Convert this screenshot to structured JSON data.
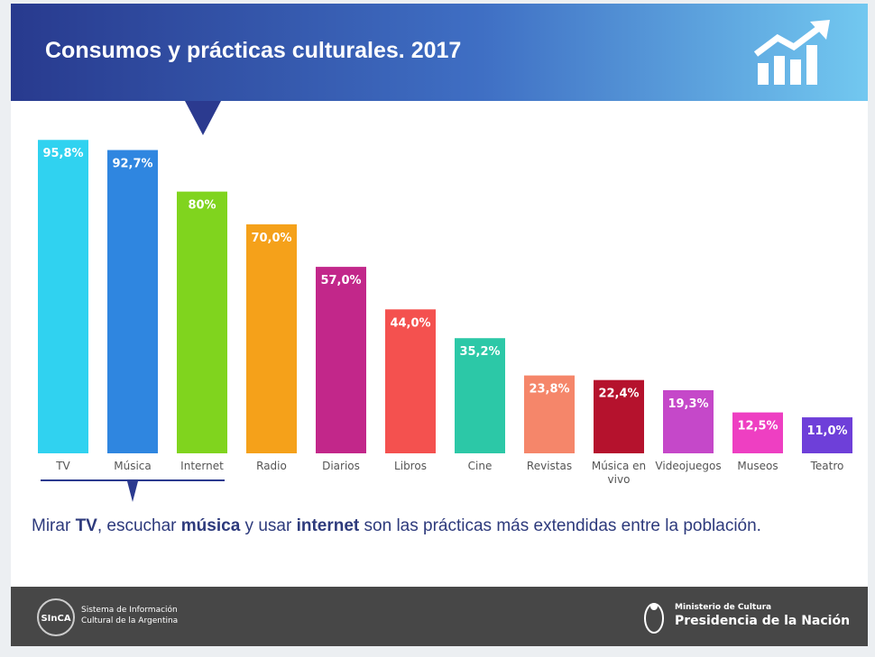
{
  "chart_data": {
    "type": "bar",
    "title": "Consumos y prácticas culturales. 2017",
    "categories": [
      "TV",
      "Música",
      "Internet",
      "Radio",
      "Diarios",
      "Libros",
      "Cine",
      "Revistas",
      "Música en vivo",
      "Videojuegos",
      "Museos",
      "Teatro"
    ],
    "values": [
      95.8,
      92.7,
      80,
      70.0,
      57.0,
      44.0,
      35.2,
      23.8,
      22.4,
      19.3,
      12.5,
      11.0
    ],
    "value_labels": [
      "95,8%",
      "92,7%",
      "80%",
      "70,0%",
      "57,0%",
      "44,0%",
      "35,2%",
      "23,8%",
      "22,4%",
      "19,3%",
      "12,5%",
      "11,0%"
    ],
    "colors": [
      "#30d2f0",
      "#2f86e0",
      "#80d41e",
      "#f5a11a",
      "#c2278a",
      "#f4514f",
      "#2cc8a7",
      "#f5866a",
      "#b5122d",
      "#c548c9",
      "#ee3fc2",
      "#6e3fd9"
    ]
  },
  "note": [
    {
      "text": "Mirar "
    },
    {
      "text": "TV",
      "bold": true
    },
    {
      "text": ", escuchar "
    },
    {
      "text": "música",
      "bold": true
    },
    {
      "text": " y usar "
    },
    {
      "text": "internet",
      "bold": true
    },
    {
      "text": " son las prácticas más extendidas entre la población."
    }
  ],
  "footer": {
    "logo": "SInCA",
    "sinca_line1": "Sistema de Información",
    "sinca_line2": "Cultural de la Argentina",
    "ministry": "Ministerio de Cultura",
    "presidency": "Presidencia de la Nación"
  }
}
